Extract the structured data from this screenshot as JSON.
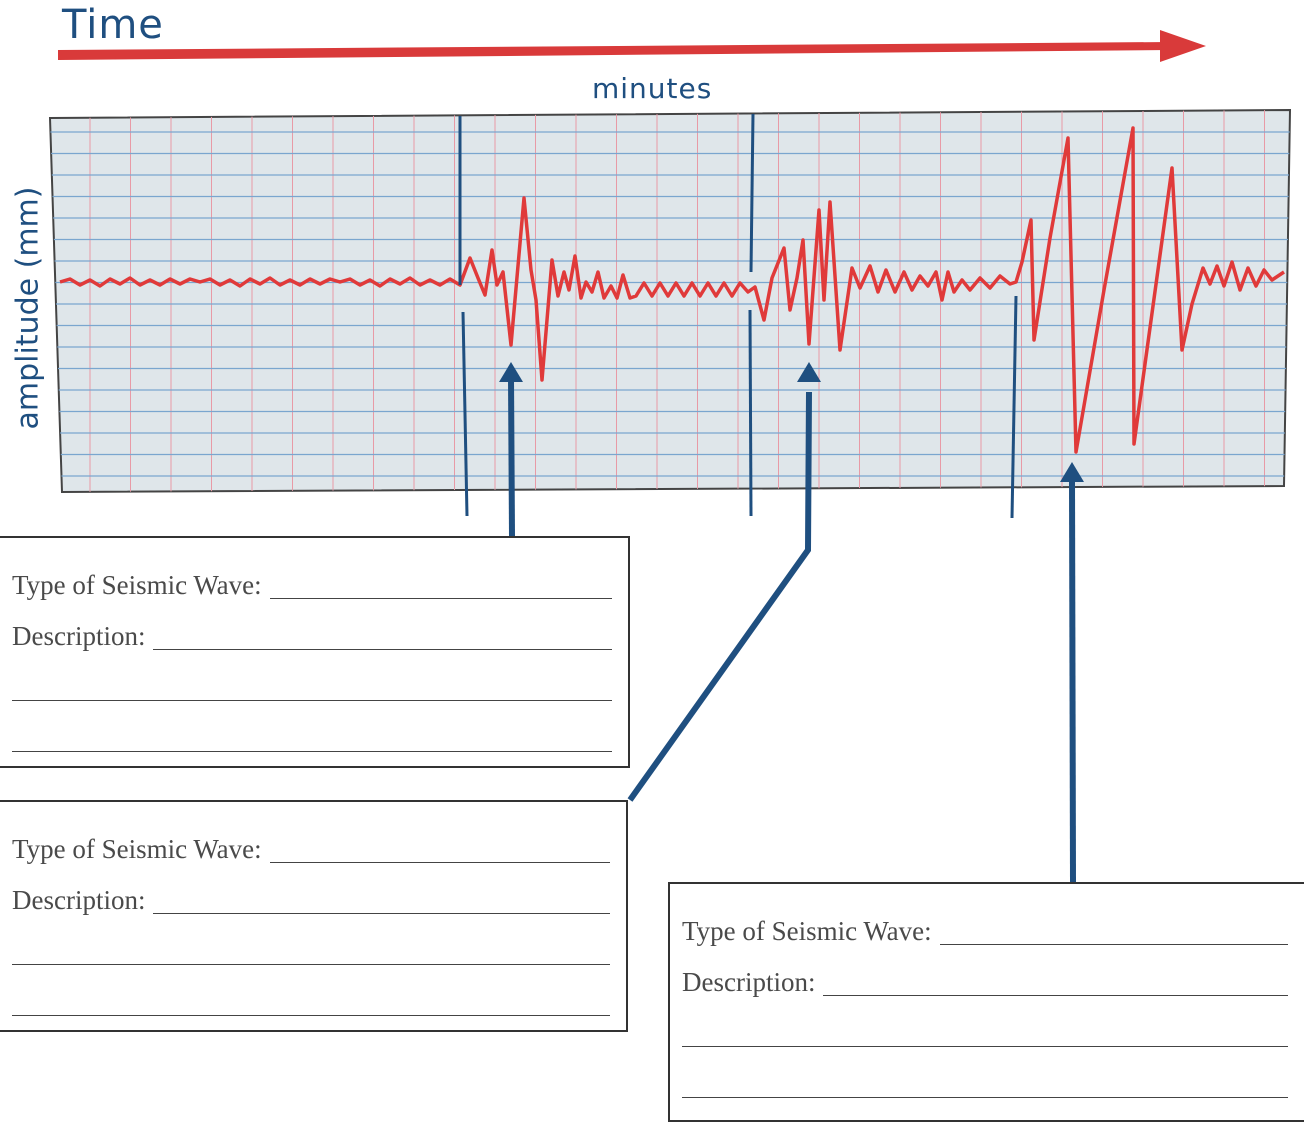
{
  "header": {
    "time_label": "Time",
    "arrow_color": "#d93a3a"
  },
  "chart": {
    "x_label": "minutes",
    "y_label": "amplitude (mm)",
    "trace_color": "#e03a3a",
    "grid_color": "#7aa6cf",
    "grid_minor_color": "#e89aa6",
    "paper_color": "#dfe6ea",
    "marker_color": "#1f4f80"
  },
  "answer_boxes": [
    {
      "type_label": "Type of Seismic Wave:",
      "description_label": "Description:"
    },
    {
      "type_label": "Type of Seismic Wave:",
      "description_label": "Description:"
    },
    {
      "type_label": "Type of Seismic Wave:",
      "description_label": "Description:"
    }
  ]
}
